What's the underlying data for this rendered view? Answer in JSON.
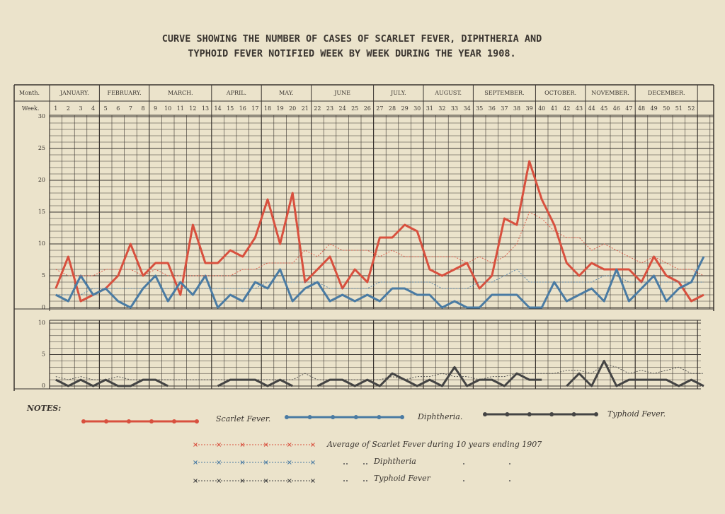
{
  "title": [
    "CURVE SHOWING THE NUMBER OF CASES OF SCARLET FEVER, DIPHTHERIA AND",
    "TYPHOID FEVER NOTIFIED WEEK BY WEEK DURING THE YEAR 1908."
  ],
  "header": {
    "month_label": "Month.",
    "week_label": "Week.",
    "months": [
      {
        "name": "JANUARY.",
        "weeks": 4
      },
      {
        "name": "FEBRUARY.",
        "weeks": 4
      },
      {
        "name": "MARCH.",
        "weeks": 5
      },
      {
        "name": "APRIL.",
        "weeks": 4
      },
      {
        "name": "MAY.",
        "weeks": 4
      },
      {
        "name": "JUNE",
        "weeks": 5
      },
      {
        "name": "JULY.",
        "weeks": 4
      },
      {
        "name": "AUGUST.",
        "weeks": 4
      },
      {
        "name": "SEPTEMBER.",
        "weeks": 5
      },
      {
        "name": "OCTOBER.",
        "weeks": 4
      },
      {
        "name": "NOVEMBER.",
        "weeks": 4
      },
      {
        "name": "DECEMBER.",
        "weeks": 5
      }
    ]
  },
  "notes": {
    "heading": "NOTES:"
  },
  "chart_data": [
    {
      "type": "line",
      "categories": [
        "1",
        "2",
        "3",
        "4",
        "5",
        "6",
        "7",
        "8",
        "9",
        "10",
        "11",
        "12",
        "13",
        "14",
        "15",
        "16",
        "17",
        "18",
        "19",
        "20",
        "21",
        "22",
        "23",
        "24",
        "25",
        "26",
        "27",
        "28",
        "29",
        "30",
        "31",
        "32",
        "33",
        "34",
        "35",
        "36",
        "37",
        "38",
        "39",
        "40",
        "41",
        "42",
        "43",
        "44",
        "45",
        "46",
        "47",
        "48",
        "49",
        "50",
        "51",
        "52",
        null
      ],
      "ylim": [
        0,
        30
      ],
      "yticks": [
        0,
        5,
        10,
        15,
        20,
        25,
        30
      ],
      "grid": true,
      "series": [
        {
          "name": "Scarlet Fever.",
          "color": "#d8503e",
          "style": "solid",
          "values": [
            3,
            8,
            1,
            2,
            3,
            5,
            10,
            5,
            7,
            7,
            2,
            13,
            7,
            7,
            9,
            8,
            11,
            17,
            10,
            18,
            4,
            6,
            8,
            3,
            6,
            4,
            11,
            11,
            13,
            12,
            6,
            5,
            6,
            7,
            3,
            5,
            14,
            13,
            23,
            17,
            13,
            7,
            5,
            7,
            6,
            6,
            6,
            4,
            8,
            5,
            4,
            1,
            2
          ]
        },
        {
          "name": "Diphtheria.",
          "color": "#4a7ba3",
          "style": "solid",
          "values": [
            2,
            1,
            5,
            2,
            3,
            1,
            0,
            3,
            5,
            1,
            4,
            2,
            5,
            0,
            2,
            1,
            4,
            3,
            6,
            1,
            3,
            4,
            1,
            2,
            1,
            2,
            1,
            3,
            3,
            2,
            2,
            0,
            1,
            0,
            0,
            2,
            2,
            2,
            0,
            0,
            4,
            1,
            2,
            3,
            1,
            6,
            1,
            3,
            5,
            1,
            3,
            4,
            8
          ]
        },
        {
          "name": "Average of Scarlet Fever during 10 years ending 1907",
          "color": "#d8503e",
          "style": "dotted",
          "values": [
            6,
            5,
            5,
            5,
            6,
            6,
            6,
            5,
            6,
            5,
            5,
            5,
            5,
            5,
            5,
            6,
            6,
            7,
            7,
            7,
            9,
            8,
            10,
            9,
            9,
            9,
            8,
            9,
            8,
            8,
            8,
            8,
            8,
            7,
            8,
            7,
            8,
            10,
            15,
            14,
            12,
            11,
            11,
            9,
            10,
            9,
            8,
            7,
            8,
            7,
            6,
            6,
            5
          ]
        },
        {
          "name": "Diphtheria",
          "color": "#4a7ba3",
          "style": "dotted",
          "values": [
            2,
            2,
            2,
            3,
            3,
            3,
            3,
            3,
            3,
            3,
            3,
            3,
            3,
            3,
            3,
            3,
            3,
            4,
            4,
            4,
            4,
            4,
            3,
            3,
            3,
            3,
            4,
            4,
            4,
            4,
            4,
            3,
            3,
            3,
            4,
            4,
            5,
            6,
            4,
            4,
            4,
            4,
            4,
            4,
            5,
            5,
            4,
            4,
            4,
            4,
            4,
            4,
            4
          ]
        }
      ]
    },
    {
      "type": "line",
      "ylim": [
        0,
        10
      ],
      "yticks": [
        0,
        5,
        10
      ],
      "grid": true,
      "series": [
        {
          "name": "Typhoid Fever.",
          "color": "#444444",
          "style": "solid",
          "values": [
            1,
            0,
            1,
            0,
            1,
            0,
            0,
            1,
            1,
            0,
            null,
            null,
            null,
            0,
            1,
            1,
            1,
            0,
            1,
            0,
            null,
            0,
            1,
            1,
            0,
            1,
            0,
            2,
            1,
            0,
            1,
            0,
            3,
            0,
            1,
            1,
            0,
            2,
            1,
            1,
            null,
            0,
            2,
            0,
            4,
            0,
            1,
            1,
            1,
            1,
            0,
            1,
            0
          ]
        },
        {
          "name": "Typhoid Fever",
          "color": "#444444",
          "style": "dotted",
          "values": [
            1.5,
            1,
            1.5,
            1,
            1,
            1.5,
            1,
            1,
            1,
            1,
            1,
            1,
            1,
            1,
            1,
            1,
            1,
            1,
            1,
            1,
            2,
            1,
            1,
            1,
            1,
            1,
            1,
            1.5,
            1,
            1.5,
            1.5,
            2,
            1.5,
            1.5,
            1,
            1.5,
            1.5,
            2,
            2,
            2,
            2,
            2.5,
            2.5,
            2,
            3.5,
            3,
            2,
            2.5,
            2,
            2.5,
            3,
            2,
            2
          ]
        }
      ]
    }
  ]
}
